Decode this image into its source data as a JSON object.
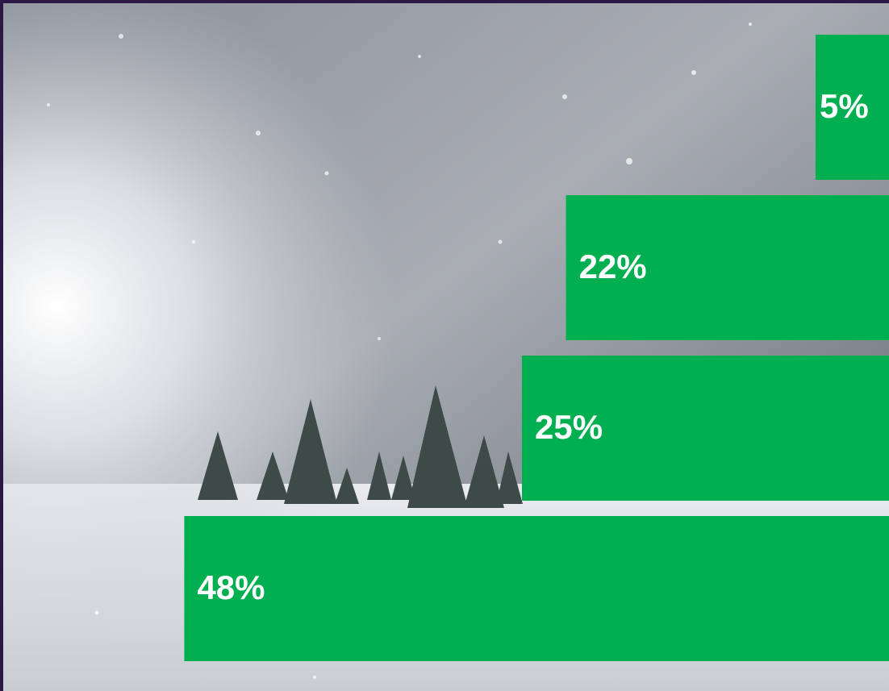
{
  "chart_data": {
    "type": "bar",
    "values": [
      5,
      22,
      25,
      48
    ],
    "value_labels": [
      "5%",
      "22%",
      "25%",
      "48%"
    ],
    "color": "#00b050"
  }
}
